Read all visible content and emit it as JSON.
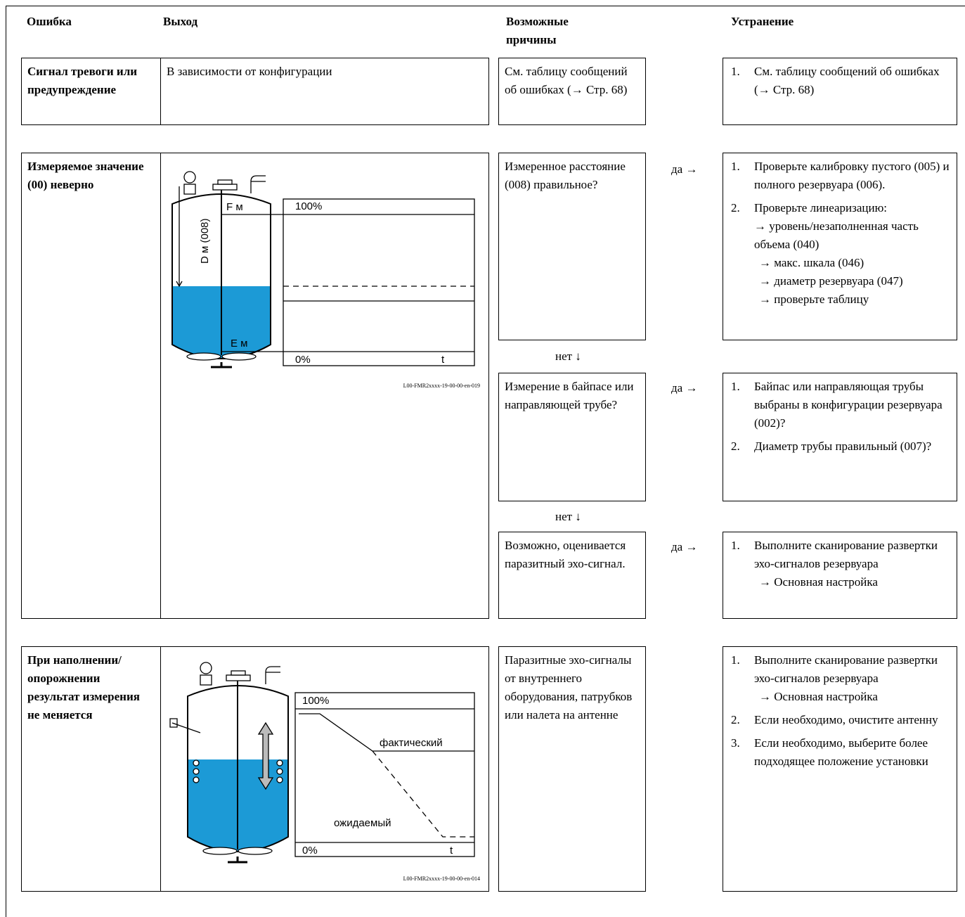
{
  "header": {
    "columns": [
      "Ошибка",
      "Выход",
      "Возможные причины",
      "Устранение"
    ]
  },
  "rows": [
    {
      "error": "Сигнал тревоги или предупреждение",
      "output": "В зависимости от конфигурации",
      "causes": [
        {
          "text": "См. таблицу сообщений об ошибках (→ Стр. 68)",
          "remedies": [
            {
              "number": "1.",
              "text": "См. таблицу сообщений об ошибках (→ Стр. 68)"
            }
          ]
        }
      ]
    },
    {
      "error": "Измеряемое значение (00) неверно",
      "figure": {
        "top_label": "F м",
        "full": "100%",
        "distance": "D м (008)",
        "empty_label": "E м",
        "zero": "0%",
        "time": "t",
        "id": "L00-FMR2xxxx-19-00-00-en-019"
      },
      "causes": [
        {
          "text": "Измеренное расстояние (008) правильное?",
          "yes": "да →",
          "no": "нет ↓",
          "remedies": [
            {
              "number": "1.",
              "text": "Проверьте калибровку пустого (005) и полного резервуара (006)."
            },
            {
              "number": "2.",
              "text": "Проверьте линеаризацию:",
              "lines": [
                "→ уровень/незаполненная часть объема (040)",
                "→ макс. шкала (046)",
                "→ диаметр резервуара (047)",
                "→ проверьте таблицу"
              ]
            }
          ]
        },
        {
          "text": "Измерение в байпасе или направляющей трубе?",
          "yes": "да →",
          "no": "нет ↓",
          "remedies": [
            {
              "number": "1.",
              "text": "Байпас или направляющая трубы выбраны в конфигурации резервуара (002)?"
            },
            {
              "number": "2.",
              "text": "Диаметр трубы правильный (007)?"
            }
          ]
        },
        {
          "text": "Возможно, оценивается паразитный эхо-сигнал.",
          "yes": "да →",
          "remedies": [
            {
              "number": "1.",
              "text": "Выполните сканирование развертки эхо-сигналов резервуара",
              "lines": [
                "→ Основная настройка"
              ]
            }
          ]
        }
      ]
    },
    {
      "error": "При наполнении/ опорожнении результат измерения не меняется",
      "figure": {
        "full": "100%",
        "actual": "фактический",
        "expected": "ожидаемый",
        "zero": "0%",
        "time": "t",
        "id": "L00-FMR2xxxx-19-00-00-en-014"
      },
      "causes": [
        {
          "text": "Паразитные эхо-сигналы от внутреннего оборудования, патрубков или налета на антенне",
          "remedies": [
            {
              "number": "1.",
              "text": "Выполните сканирование развертки эхо-сигналов резервуара",
              "lines": [
                "→ Основная настройка"
              ]
            },
            {
              "number": "2.",
              "text": "Если необходимо, очистите антенну"
            },
            {
              "number": "3.",
              "text": "Если необходимо, выберите более подходящее положение установки"
            }
          ]
        }
      ]
    }
  ]
}
